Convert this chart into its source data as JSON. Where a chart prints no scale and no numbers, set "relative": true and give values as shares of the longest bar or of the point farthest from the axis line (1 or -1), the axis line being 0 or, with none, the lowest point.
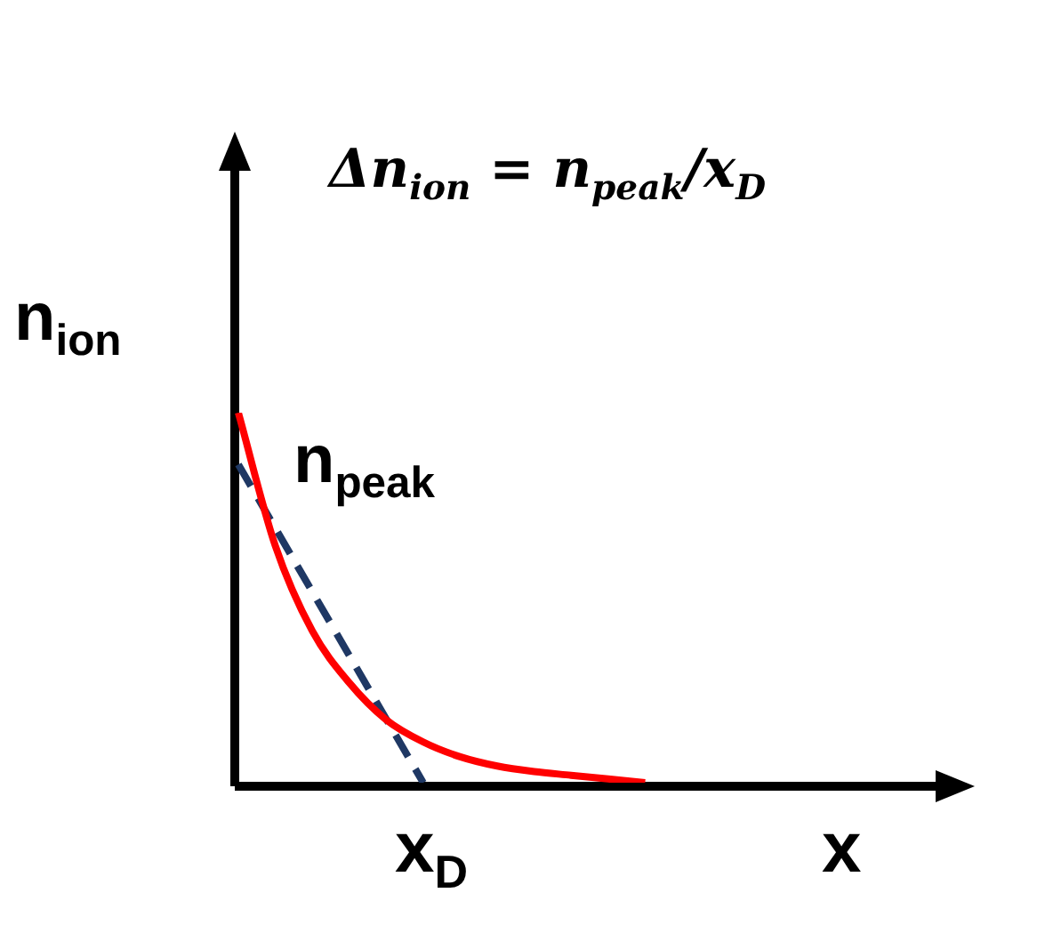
{
  "chart_data": {
    "type": "line",
    "relative": true,
    "title": "Δn$_{ion}$ = n$_{peak}$/x$_{D}$",
    "ylabel": "n$_{ion}$",
    "xlabel": "x",
    "annotations": [
      "n$_{peak}$",
      "x$_{D}$"
    ],
    "categories": [
      null,
      null,
      null,
      null,
      null,
      null,
      null,
      null,
      null,
      null,
      null,
      null,
      null,
      null,
      null,
      null,
      null,
      null,
      null,
      null
    ],
    "series": [
      {
        "color": "#ff0000",
        "values": [
          1,
          0.64,
          0.41,
          0.27,
          0.17,
          0.11,
          0.07,
          0.045,
          0.03,
          0.02,
          0.01,
          0,
          null,
          null,
          null,
          null,
          null,
          null,
          null,
          null
        ]
      },
      {
        "color": "#1f3864",
        "line_style": "dashed",
        "values": [
          0.86,
          null,
          null,
          null,
          null,
          0,
          null,
          null,
          null,
          null,
          null,
          null,
          null,
          null,
          null,
          null,
          null,
          null,
          null,
          null
        ]
      }
    ],
    "legend": false,
    "marker": "none"
  }
}
